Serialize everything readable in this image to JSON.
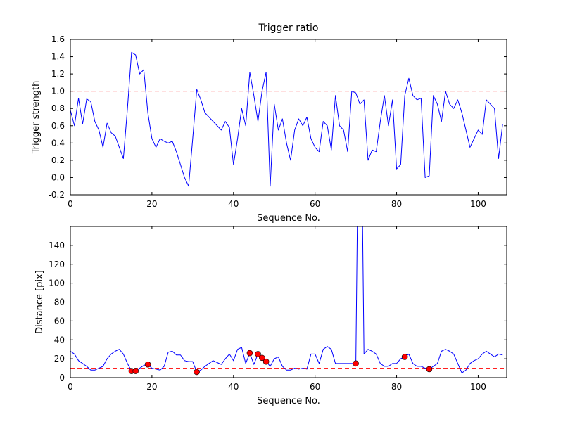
{
  "figure_title": "Trigger ratio",
  "chart_data": [
    {
      "type": "line",
      "title": "Trigger ratio",
      "xlabel": "Sequence No.",
      "ylabel": "Trigger strength",
      "xlim": [
        0,
        107
      ],
      "ylim": [
        -0.2,
        1.6
      ],
      "xticks": [
        0,
        20,
        40,
        60,
        80,
        100
      ],
      "xticklabels": [
        "0",
        "20",
        "40",
        "60",
        "80",
        "100"
      ],
      "yticks": [
        -0.2,
        0.0,
        0.2,
        0.4,
        0.6,
        0.8,
        1.0,
        1.2,
        1.4,
        1.6
      ],
      "yticklabels": [
        "-0.2",
        "0.0",
        "0.2",
        "0.4",
        "0.6",
        "0.8",
        "1.0",
        "1.2",
        "1.4",
        "1.6"
      ],
      "grid": false,
      "legend": null,
      "threshold_lines": [
        {
          "y": 1.0,
          "color": "#ff0000",
          "style": "dashed"
        }
      ],
      "series": [
        {
          "name": "trigger-strength",
          "color": "#0000ff",
          "x_start": 0,
          "x_step": 1,
          "values": [
            0.78,
            0.6,
            0.92,
            0.62,
            0.91,
            0.88,
            0.65,
            0.55,
            0.35,
            0.63,
            0.52,
            0.48,
            0.35,
            0.22,
            0.8,
            1.45,
            1.42,
            1.2,
            1.25,
            0.75,
            0.45,
            0.35,
            0.45,
            0.42,
            0.4,
            0.42,
            0.3,
            0.15,
            0.0,
            -0.1,
            0.45,
            1.02,
            0.9,
            0.75,
            0.7,
            0.65,
            0.6,
            0.55,
            0.65,
            0.58,
            0.15,
            0.45,
            0.8,
            0.6,
            1.22,
            0.95,
            0.65,
            1.0,
            1.22,
            -0.1,
            0.85,
            0.55,
            0.68,
            0.4,
            0.2,
            0.55,
            0.68,
            0.6,
            0.7,
            0.45,
            0.35,
            0.3,
            0.65,
            0.6,
            0.32,
            0.95,
            0.6,
            0.55,
            0.3,
            1.0,
            0.98,
            0.85,
            0.9,
            0.2,
            0.32,
            0.3,
            0.65,
            0.95,
            0.6,
            0.9,
            0.1,
            0.15,
            0.95,
            1.15,
            0.95,
            0.9,
            0.92,
            0.0,
            0.02,
            0.95,
            0.85,
            0.65,
            1.0,
            0.85,
            0.8,
            0.9,
            0.75,
            0.55,
            0.35,
            0.45,
            0.55,
            0.5,
            0.9,
            0.85,
            0.8,
            0.22,
            0.62
          ]
        }
      ]
    },
    {
      "type": "line",
      "title": "",
      "xlabel": "Sequence No.",
      "ylabel": "Distance [pix]",
      "xlim": [
        0,
        107
      ],
      "ylim": [
        0,
        160
      ],
      "xticks": [
        0,
        20,
        40,
        60,
        80,
        100
      ],
      "xticklabels": [
        "0",
        "20",
        "40",
        "60",
        "80",
        "100"
      ],
      "yticks": [
        0,
        20,
        40,
        60,
        80,
        100,
        120,
        140
      ],
      "yticklabels": [
        "0",
        "20",
        "40",
        "60",
        "80",
        "100",
        "120",
        "140"
      ],
      "grid": false,
      "legend": null,
      "threshold_lines": [
        {
          "y": 150,
          "color": "#ff0000",
          "style": "dashed"
        },
        {
          "y": 10,
          "color": "#ff0000",
          "style": "dashed"
        }
      ],
      "series": [
        {
          "name": "distance",
          "color": "#0000ff",
          "x_start": 0,
          "x_step": 1,
          "values": [
            28,
            25,
            18,
            15,
            12,
            8,
            8,
            10,
            12,
            20,
            25,
            28,
            30,
            25,
            15,
            7,
            7,
            10,
            13,
            14,
            10,
            9,
            8,
            12,
            27,
            28,
            24,
            24,
            18,
            17,
            17,
            6,
            8,
            12,
            15,
            18,
            16,
            14,
            20,
            25,
            18,
            30,
            32,
            15,
            26,
            14,
            25,
            21,
            17,
            12,
            20,
            22,
            12,
            8,
            8,
            10,
            9,
            10,
            9,
            25,
            25,
            15,
            30,
            33,
            30,
            15,
            15,
            15,
            15,
            15,
            15,
            420,
            25,
            30,
            28,
            25,
            15,
            12,
            12,
            15,
            15,
            20,
            22,
            25,
            15,
            12,
            12,
            10,
            9,
            12,
            15,
            28,
            30,
            28,
            25,
            15,
            5,
            8,
            15,
            18,
            20,
            25,
            28,
            25,
            22,
            25,
            24
          ]
        }
      ],
      "markers": {
        "shape": "circle",
        "color": "#ff0000",
        "edge_color": "#000000",
        "points": [
          {
            "x": 15,
            "y": 7
          },
          {
            "x": 16,
            "y": 7
          },
          {
            "x": 19,
            "y": 14
          },
          {
            "x": 31,
            "y": 6
          },
          {
            "x": 44,
            "y": 26
          },
          {
            "x": 46,
            "y": 25
          },
          {
            "x": 47,
            "y": 21
          },
          {
            "x": 48,
            "y": 17
          },
          {
            "x": 70,
            "y": 15
          },
          {
            "x": 82,
            "y": 22
          },
          {
            "x": 88,
            "y": 9
          }
        ]
      }
    }
  ],
  "colors": {
    "line": "#0000ff",
    "threshold": "#ff0000",
    "marker": "#ff0000",
    "axes": "#000000",
    "background": "#ffffff"
  }
}
